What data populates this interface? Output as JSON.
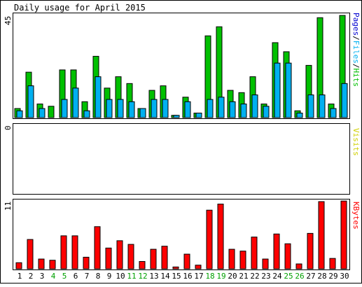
{
  "chart_data": [
    {
      "type": "bar",
      "title": "Daily usage for April 2015",
      "ylabel": "Pages/Files/Hits",
      "ymax_label": "45",
      "ylim": [
        0,
        45
      ],
      "series": [
        {
          "name": "Hits",
          "color": "#00c000",
          "values": [
            4,
            20,
            6,
            5,
            21,
            21,
            7,
            27,
            13,
            18,
            15,
            4,
            12,
            14,
            1,
            9,
            2,
            36,
            40,
            12,
            11,
            18,
            6,
            33,
            29,
            3,
            23,
            44,
            6,
            45
          ]
        },
        {
          "name": "Files",
          "color": "#00b0f0",
          "values": [
            3,
            14,
            4,
            0,
            8,
            13,
            3,
            18,
            8,
            8,
            7,
            4,
            8,
            8,
            1,
            7,
            2,
            8,
            9,
            7,
            6,
            10,
            5,
            24,
            24,
            2,
            10,
            10,
            4,
            15
          ]
        },
        {
          "name": "Pages",
          "color": "#0000d0",
          "values": [
            0,
            0,
            0,
            0,
            0,
            0,
            0,
            0,
            0,
            0,
            0,
            0,
            0,
            0,
            0,
            0,
            0,
            0,
            0,
            0,
            0,
            0,
            0,
            0,
            0,
            0,
            0,
            0,
            0,
            0
          ]
        }
      ]
    },
    {
      "type": "bar",
      "ylabel": "Visits",
      "ymax_label": "0",
      "ylim": [
        0,
        1
      ],
      "series": [
        {
          "name": "Visits",
          "color": "#d0d000",
          "values": [
            0,
            0,
            0,
            0,
            0,
            0,
            0,
            0,
            0,
            0,
            0,
            0,
            0,
            0,
            0,
            0,
            0,
            0,
            0,
            0,
            0,
            0,
            0,
            0,
            0,
            0,
            0,
            0,
            0,
            0
          ]
        }
      ]
    },
    {
      "type": "bar",
      "ylabel": "KBytes",
      "ymax_label": "11",
      "ylim": [
        0,
        11
      ],
      "series": [
        {
          "name": "KBytes",
          "color": "#ff0000",
          "values": [
            1,
            4.8,
            1.6,
            1.4,
            5.4,
            5.4,
            1.9,
            6.9,
            3.4,
            4.6,
            4,
            1.2,
            3.2,
            3.7,
            0.3,
            2.4,
            0.6,
            9.6,
            10.6,
            3.2,
            2.9,
            5.2,
            1.6,
            5.7,
            4.1,
            0.8,
            5.8,
            11,
            1.7,
            11.1
          ]
        }
      ]
    }
  ],
  "days": [
    "1",
    "2",
    "3",
    "4",
    "5",
    "6",
    "7",
    "8",
    "9",
    "10",
    "11",
    "12",
    "13",
    "14",
    "15",
    "16",
    "17",
    "18",
    "19",
    "20",
    "21",
    "22",
    "23",
    "24",
    "25",
    "26",
    "27",
    "28",
    "29",
    "30"
  ],
  "weekend_days": [
    "4",
    "5",
    "11",
    "12",
    "18",
    "19",
    "25",
    "26"
  ],
  "colors": {
    "background": "#ffffff",
    "border": "#000000",
    "weekday_label": "#000000",
    "weekend_label": "#00a000",
    "hits_label": "#00c000",
    "files_label": "#00b0f0",
    "pages_label": "#0000d0",
    "visits_label": "#d0d000",
    "kbytes_label": "#ff0000"
  }
}
